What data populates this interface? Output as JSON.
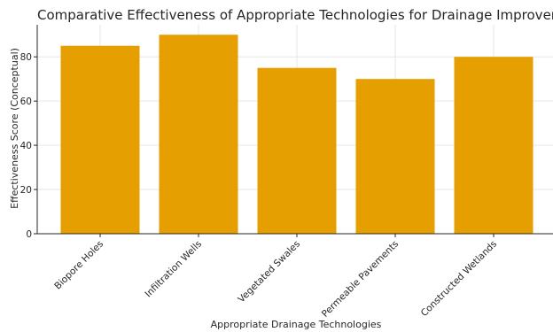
{
  "chart_data": {
    "type": "bar",
    "title": "Comparative Effectiveness of Appropriate Technologies for Drainage Improvement",
    "xlabel": "Appropriate Drainage Technologies",
    "ylabel": "Effectiveness Score (Conceptual)",
    "categories": [
      "Biopore Holes",
      "Infiltration Wells",
      "Vegetated Swales",
      "Permeable Pavements",
      "Constructed Wetlands"
    ],
    "values": [
      85,
      90,
      75,
      70,
      80
    ],
    "ylim": [
      0,
      94.5
    ],
    "yticks": [
      0,
      20,
      40,
      60,
      80
    ],
    "grid": true,
    "bar_color": "#e69f00"
  }
}
